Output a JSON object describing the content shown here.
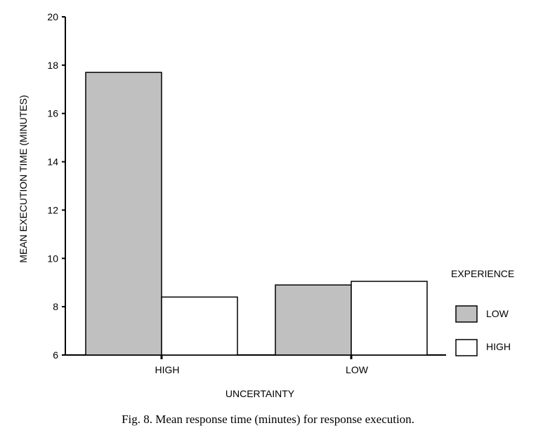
{
  "chart_data": {
    "type": "bar",
    "title": "",
    "xlabel": "UNCERTAINTY",
    "ylabel": "MEAN EXECUTION TIME (MINUTES)",
    "categories": [
      "HIGH",
      "LOW"
    ],
    "series": [
      {
        "name": "LOW",
        "values": [
          17.7,
          8.9
        ],
        "color": "#c0c0c0"
      },
      {
        "name": "HIGH",
        "values": [
          8.4,
          9.05
        ],
        "color": "#ffffff"
      }
    ],
    "ylim": [
      6,
      20
    ],
    "yticks": [
      6,
      8,
      10,
      12,
      14,
      16,
      18,
      20
    ],
    "legend": {
      "title": "EXPERIENCE",
      "placement": "right"
    },
    "grid": false
  },
  "caption": "Fig. 8.  Mean response time (minutes) for response execution."
}
